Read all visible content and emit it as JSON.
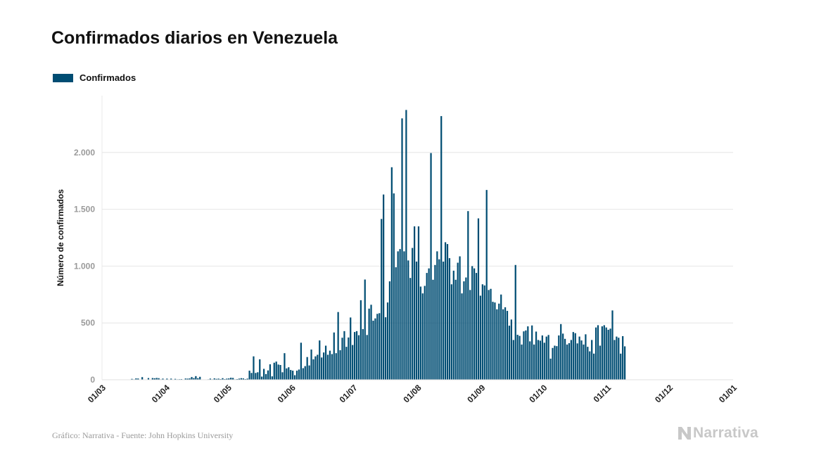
{
  "chart_data": {
    "type": "bar",
    "title": "Confirmados diarios en Venezuela",
    "ylabel": "Número de confirmados",
    "xlabel": "",
    "legend": {
      "position": "top-left",
      "entries": [
        "Confirmados"
      ]
    },
    "grid": true,
    "ylim": [
      0,
      2500
    ],
    "yticks": [
      {
        "value": 0,
        "label": "0"
      },
      {
        "value": 500,
        "label": "500"
      },
      {
        "value": 1000,
        "label": "1.000"
      },
      {
        "value": 1500,
        "label": "1.500"
      },
      {
        "value": 2000,
        "label": "2.000"
      }
    ],
    "xticks": [
      "01/03",
      "01/04",
      "01/05",
      "01/06",
      "01/07",
      "01/08",
      "01/09",
      "01/10",
      "01/11",
      "01/12",
      "01/01"
    ],
    "x_start": "2020-03-01",
    "x_end": "2021-01-01",
    "series": [
      {
        "name": "Confirmados",
        "color": "#004d73",
        "x": "2020-03-14 to 2020-12-18 (daily)",
        "values": [
          2,
          8,
          4,
          12,
          11,
          0,
          23,
          1,
          3,
          15,
          2,
          15,
          13,
          16,
          14,
          4,
          10,
          0,
          10,
          2,
          10,
          2,
          8,
          4,
          5,
          6,
          2,
          11,
          10,
          12,
          24,
          15,
          32,
          14,
          26,
          0,
          2,
          2,
          4,
          10,
          4,
          12,
          8,
          10,
          6,
          14,
          6,
          10,
          12,
          18,
          16,
          4,
          6,
          10,
          14,
          12,
          6,
          10,
          80,
          60,
          206,
          60,
          66,
          180,
          28,
          96,
          50,
          82,
          136,
          30,
          150,
          160,
          134,
          130,
          66,
          234,
          100,
          110,
          86,
          80,
          40,
          80,
          90,
          326,
          102,
          120,
          200,
          126,
          266,
          180,
          206,
          220,
          346,
          196,
          240,
          300,
          220,
          256,
          226,
          416,
          234,
          596,
          260,
          370,
          428,
          290,
          372,
          548,
          306,
          420,
          428,
          392,
          700,
          446,
          882,
          394,
          626,
          660,
          520,
          540,
          580,
          586,
          1415,
          1630,
          550,
          680,
          866,
          1870,
          1640,
          990,
          1130,
          1150,
          2300,
          1130,
          2374,
          1050,
          896,
          1160,
          1350,
          1040,
          1350,
          820,
          760,
          826,
          940,
          980,
          1995,
          880,
          1010,
          1130,
          1060,
          2320,
          1040,
          1210,
          1194,
          1070,
          840,
          960,
          880,
          1030,
          1086,
          760,
          866,
          900,
          1484,
          790,
          1000,
          980,
          940,
          1420,
          740,
          840,
          830,
          1670,
          790,
          800,
          686,
          680,
          620,
          670,
          750,
          620,
          638,
          606,
          476,
          530,
          350,
          1010,
          396,
          386,
          310,
          426,
          434,
          470,
          338,
          478,
          310,
          424,
          350,
          344,
          390,
          326,
          380,
          394,
          186,
          280,
          300,
          296,
          390,
          490,
          406,
          360,
          310,
          322,
          350,
          420,
          410,
          320,
          380,
          346,
          310,
          400,
          290,
          250,
          350,
          230,
          460,
          480,
          300,
          470,
          480,
          460,
          440,
          450,
          610,
          350,
          380,
          370,
          230,
          384,
          294
        ]
      }
    ]
  },
  "footer": {
    "credit": "Gráfico: Narrativa - Fuente: John Hopkins University"
  },
  "logo": {
    "text": "Narrativa"
  }
}
